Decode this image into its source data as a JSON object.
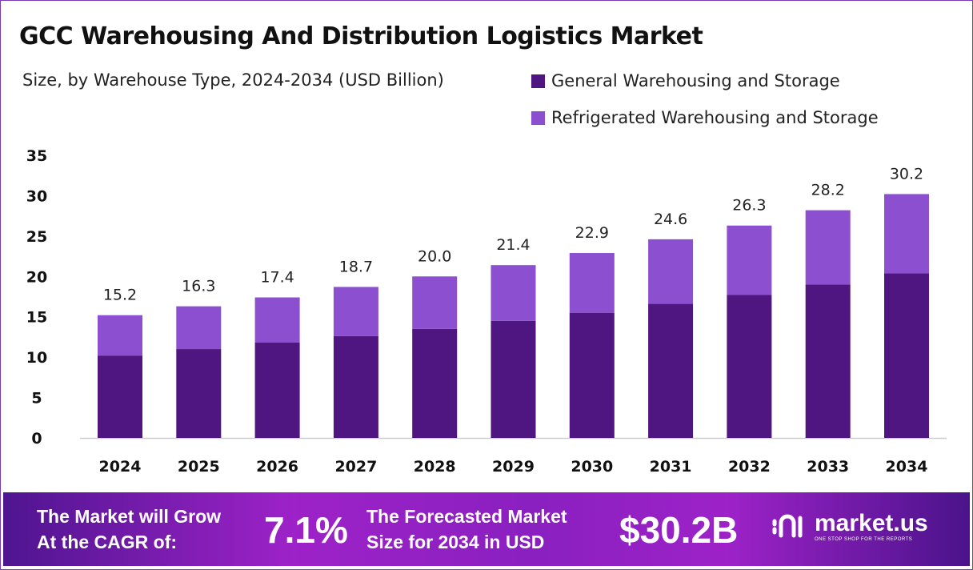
{
  "chart_data": {
    "type": "bar",
    "stacked": true,
    "title": "GCC Warehousing And Distribution Logistics Market",
    "subtitle": "Size, by Warehouse Type, 2024-2034 (USD Billion)",
    "categories": [
      "2024",
      "2025",
      "2026",
      "2027",
      "2028",
      "2029",
      "2030",
      "2031",
      "2032",
      "2033",
      "2034"
    ],
    "series": [
      {
        "name": "General Warehousing and Storage",
        "color": "#4f1580",
        "values": [
          10.2,
          11.0,
          11.8,
          12.6,
          13.5,
          14.5,
          15.5,
          16.6,
          17.7,
          19.0,
          20.4
        ]
      },
      {
        "name": "Refrigerated Warehousing and Storage",
        "color": "#8b4fcf",
        "values": [
          5.0,
          5.3,
          5.6,
          6.1,
          6.5,
          6.9,
          7.4,
          8.0,
          8.6,
          9.2,
          9.8
        ]
      }
    ],
    "totals": [
      "15.2",
      "16.3",
      "17.4",
      "18.7",
      "20.0",
      "21.4",
      "22.9",
      "24.6",
      "26.3",
      "28.2",
      "30.2"
    ],
    "ylim": [
      0,
      35
    ],
    "yticks": [
      "0",
      "5",
      "10",
      "15",
      "20",
      "25",
      "30",
      "35"
    ],
    "grid": false,
    "legend_position": "top-right"
  },
  "footer": {
    "cagr_line1": "The Market will Grow",
    "cagr_line2": "At the CAGR of:",
    "cagr_value": "7.1%",
    "forecast_line1": "The Forecasted Market",
    "forecast_line2": "Size for 2034 in USD",
    "forecast_value": "$30.2B",
    "logo_text": "market.us",
    "logo_tagline": "ONE STOP SHOP FOR THE REPORTS"
  }
}
